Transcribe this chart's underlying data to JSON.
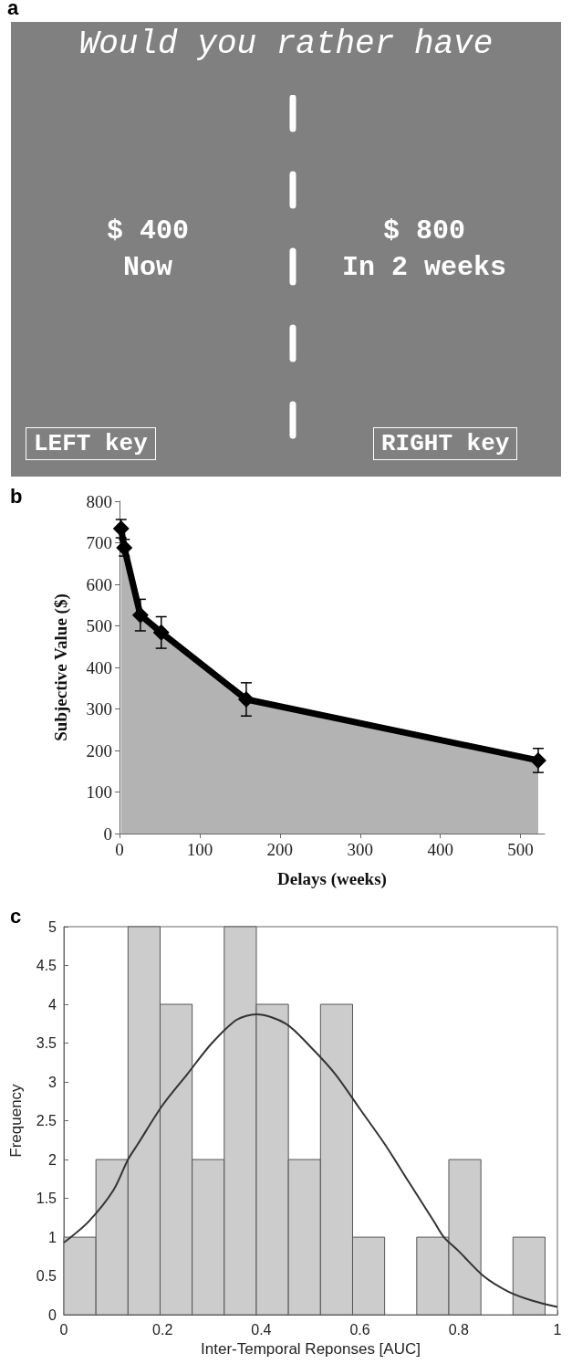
{
  "chart_data": [
    {
      "type": "other",
      "title": "a",
      "annotations": [
        "Would you rather have",
        "$ 400",
        "Now",
        "$ 800",
        "In 2 weeks",
        "LEFT key",
        "RIGHT key"
      ]
    },
    {
      "type": "area",
      "title": "b",
      "xlabel": "Delays (weeks)",
      "ylabel": "Subjective Value ($)",
      "x": [
        2,
        6,
        26,
        52,
        158,
        522
      ],
      "xlim": [
        0,
        530
      ],
      "xticks": [
        0,
        100,
        200,
        300,
        400,
        500
      ],
      "ylim": [
        0,
        800
      ],
      "yticks": [
        0,
        100,
        200,
        300,
        400,
        500,
        600,
        700,
        800
      ],
      "series": [
        {
          "type": "area",
          "color": "#000000",
          "marker": "diamond",
          "values": [
            734,
            688,
            526,
            484,
            323,
            176
          ],
          "errors": [
            22,
            20,
            38,
            38,
            40,
            29
          ]
        }
      ]
    },
    {
      "type": "histogram",
      "title": "c",
      "xlabel": "Inter-Temporal Reponses [AUC]",
      "ylabel": "Frequency",
      "color": "#cccccc",
      "bins": [
        0,
        0.065,
        0.13,
        0.195,
        0.26,
        0.325,
        0.39,
        0.455,
        0.52,
        0.585,
        0.65,
        0.715,
        0.78,
        0.845,
        0.91,
        0.975
      ],
      "values": [
        1,
        2,
        5,
        4,
        2,
        5,
        4,
        2,
        4,
        1,
        0,
        1,
        2,
        0,
        1
      ],
      "xlim": [
        0,
        1
      ],
      "xticks": [
        0,
        0.2,
        0.4,
        0.6,
        0.8,
        1
      ],
      "ylim": [
        0,
        5
      ],
      "yticks": [
        0,
        0.5,
        1,
        1.5,
        2,
        2.5,
        3,
        3.5,
        4,
        4.5,
        5
      ],
      "series": [
        {
          "type": "line",
          "color": "#333333",
          "x": [
            0,
            0.05,
            0.1,
            0.13,
            0.15,
            0.2,
            0.25,
            0.3,
            0.35,
            0.39,
            0.45,
            0.5,
            0.55,
            0.6,
            0.65,
            0.7,
            0.75,
            0.77,
            0.8,
            0.85,
            0.9,
            0.95,
            1
          ],
          "values": [
            0.93,
            1.2,
            1.6,
            2.0,
            2.2,
            2.7,
            3.1,
            3.5,
            3.8,
            3.87,
            3.75,
            3.45,
            3.1,
            2.65,
            2.2,
            1.7,
            1.2,
            1.0,
            0.82,
            0.5,
            0.3,
            0.18,
            0.1
          ]
        }
      ]
    }
  ]
}
